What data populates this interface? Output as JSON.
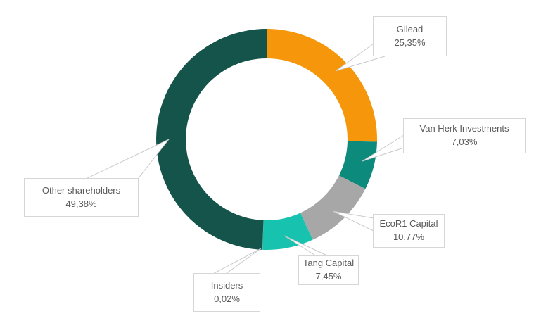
{
  "page": {
    "background_color": "#ffffff",
    "text_color": "#595959",
    "callout_border_color": "#d6d6d6",
    "leader_line_color": "#c6c9cc"
  },
  "chart_data": {
    "type": "pie",
    "subtype": "donut",
    "categories": [
      "Gilead",
      "Van Herk Investments",
      "EcoR1 Capital",
      "Tang Capital",
      "Insiders",
      "Other shareholders"
    ],
    "values": [
      25.35,
      7.03,
      10.77,
      7.45,
      0.02,
      49.38
    ],
    "value_labels": [
      "25,35%",
      "7,03%",
      "10,77%",
      "7,45%",
      "0,02%",
      "49,38%"
    ],
    "colors": [
      "#F6960A",
      "#0C8A7C",
      "#A7A7A7",
      "#17C3AE",
      "#7F7F7F",
      "#14544A"
    ],
    "start_angle_deg": 0,
    "direction": "clockwise",
    "donut_hole_ratio": 0.73,
    "legend": "none",
    "data_labels": "callout boxes with category name and percent, decimal comma format"
  }
}
